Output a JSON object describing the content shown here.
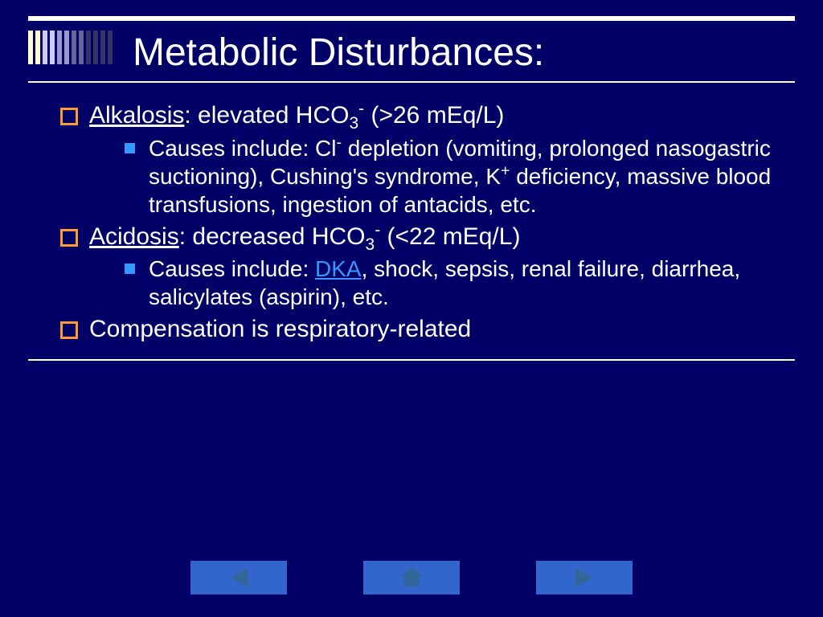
{
  "title": "Metabolic Disturbances:",
  "corner_bar_colors": [
    "#ffffcc",
    "#ffffcc",
    "#ccccff",
    "#ccccff",
    "#9999cc",
    "#9999cc",
    "#666699",
    "#666699",
    "#333366",
    "#333366",
    "#333366",
    "#333366"
  ],
  "bullets": {
    "alkalosis": {
      "label": "Alkalosis",
      "rest": ": elevated HCO",
      "sub": "3",
      "sup": "-",
      "after": " (>26 mEq/L)"
    },
    "alkalosis_cause_pre": "Causes include:  Cl",
    "alkalosis_cause_sup": "-",
    "alkalosis_cause_post": " depletion (vomiting, prolonged nasogastric suctioning), Cushing's syndrome, K",
    "alkalosis_cause_sup2": "+",
    "alkalosis_cause_end": " deficiency, massive blood transfusions, ingestion of antacids, etc.",
    "acidosis": {
      "label": "Acidosis",
      "rest": ": decreased HCO",
      "sub": "3",
      "sup": "-",
      "after": " (<22 mEq/L)"
    },
    "acidosis_cause_pre": "Causes include:  ",
    "acidosis_link": "DKA",
    "acidosis_cause_post": ", shock, sepsis, renal failure, diarrhea, salicylates (aspirin), etc.",
    "compensation": "Compensation is respiratory-related"
  },
  "colors": {
    "bg": "#000066",
    "bullet_l1": "#ff9933",
    "bullet_l2": "#3399ff",
    "nav_btn": "#3366cc",
    "nav_icon": "#336699",
    "link": "#3399ff"
  }
}
